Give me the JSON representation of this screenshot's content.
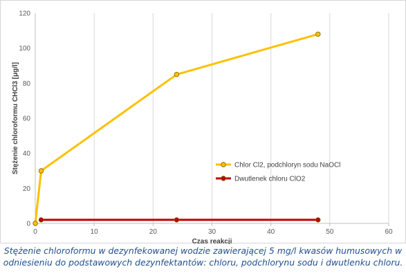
{
  "chart_data": {
    "type": "line",
    "xlabel": "Czas reakcji",
    "ylabel": "Stężenie chloroformu CHCl3 [μg/l]",
    "xlim": [
      0,
      60
    ],
    "ylim": [
      0,
      120
    ],
    "x_ticks": [
      0,
      10,
      20,
      30,
      40,
      50,
      60
    ],
    "y_ticks": [
      0,
      20,
      40,
      60,
      80,
      100,
      120
    ],
    "grid": "vertical",
    "legend_position": "right",
    "series": [
      {
        "name": "Chlor Cl2, podchloryn sodu NaOCl",
        "color": "#FFC000",
        "x": [
          0,
          1,
          24,
          48
        ],
        "y": [
          0,
          30,
          85,
          108
        ]
      },
      {
        "name": "Dwutlenek chloru ClO2",
        "color": "#C00000",
        "x": [
          1,
          24,
          48
        ],
        "y": [
          2,
          2,
          2
        ]
      }
    ]
  },
  "caption": "Stężenie chloroformu w dezynfekowanej wodzie zawierającej 5 mg/l kwasów humusowych w odniesieniu do podstawowych dezynfektantów: chloru, podchlorynu sodu i dwutlenku chloru."
}
